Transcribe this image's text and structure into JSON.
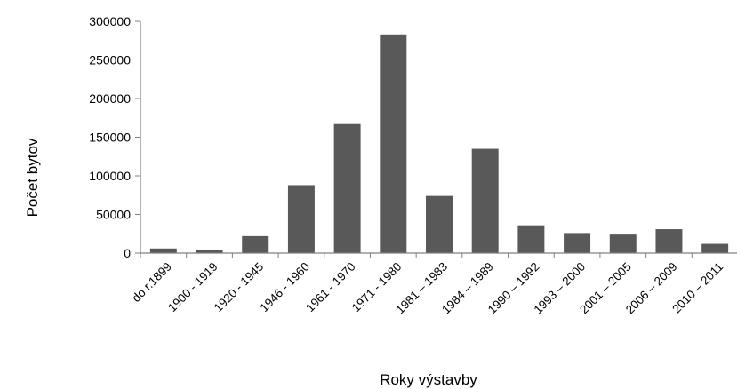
{
  "chart_data": {
    "type": "bar",
    "title": "",
    "xlabel": "Roky výstavby",
    "ylabel": "Počet bytov",
    "ylim": [
      0,
      300000
    ],
    "yticks": [
      0,
      50000,
      100000,
      150000,
      200000,
      250000,
      300000
    ],
    "ytick_labels": [
      "0",
      "50000",
      "100000",
      "150000",
      "200000",
      "250000",
      "300000"
    ],
    "grid": false,
    "legend": "none",
    "categories": [
      "do r.1899",
      "1900 - 1919",
      "1920 - 1945",
      "1946 - 1960",
      "1961 - 1970",
      "1971 - 1980",
      "1981 – 1983",
      "1984 – 1989",
      "1990 – 1992",
      "1993 – 2000",
      "2001 – 2005",
      "2006 – 2009",
      "2010 – 2011"
    ],
    "values": [
      6000,
      4000,
      22000,
      88000,
      167000,
      283000,
      74000,
      135000,
      36000,
      26000,
      24000,
      31000,
      12000
    ],
    "bar_color": "#595959",
    "axis_color": "#808080"
  }
}
